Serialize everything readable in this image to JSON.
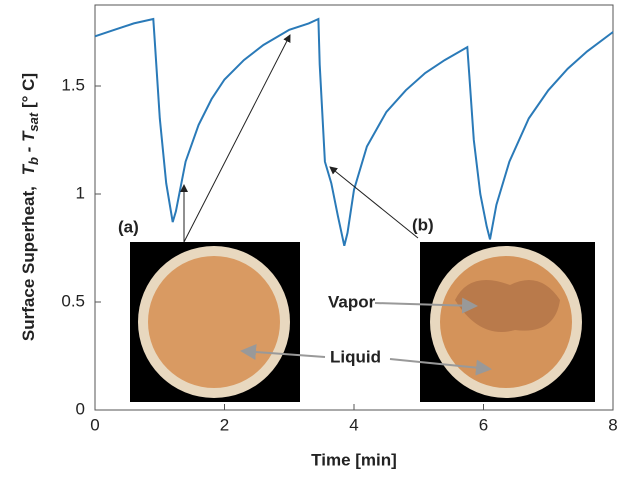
{
  "chart_data": {
    "type": "line",
    "xlabel": "Time [min]",
    "ylabel": [
      "Surface Superheat,",
      "T",
      "b",
      " - T",
      "sat",
      " [° C]"
    ],
    "x": [
      0,
      0.3,
      0.6,
      0.9,
      0.92,
      1.0,
      1.1,
      1.2,
      1.25,
      1.4,
      1.6,
      1.8,
      2.0,
      2.3,
      2.6,
      3.0,
      3.3,
      3.45,
      3.47,
      3.55,
      3.65,
      3.75,
      3.85,
      3.9,
      4.0,
      4.2,
      4.5,
      4.8,
      5.1,
      5.4,
      5.75,
      5.78,
      5.85,
      5.95,
      6.05,
      6.1,
      6.2,
      6.4,
      6.7,
      7.0,
      7.3,
      7.6,
      8.0
    ],
    "values": [
      1.73,
      1.76,
      1.79,
      1.81,
      1.72,
      1.35,
      1.05,
      0.87,
      0.92,
      1.15,
      1.32,
      1.44,
      1.53,
      1.62,
      1.69,
      1.76,
      1.79,
      1.81,
      1.6,
      1.15,
      1.05,
      0.9,
      0.76,
      0.82,
      1.02,
      1.22,
      1.38,
      1.48,
      1.56,
      1.62,
      1.68,
      1.55,
      1.25,
      1.0,
      0.85,
      0.79,
      0.95,
      1.15,
      1.35,
      1.48,
      1.58,
      1.66,
      1.75
    ],
    "color": "#2a7ab8",
    "xlim": [
      0,
      8
    ],
    "xticks": [
      0,
      2,
      4,
      6,
      8
    ],
    "ylim": [
      0,
      1.875
    ],
    "yticks": [
      0,
      0.5,
      1,
      1.5
    ],
    "annotations": [
      "(a)",
      "(b)",
      "Vapor",
      "Liquid"
    ]
  }
}
